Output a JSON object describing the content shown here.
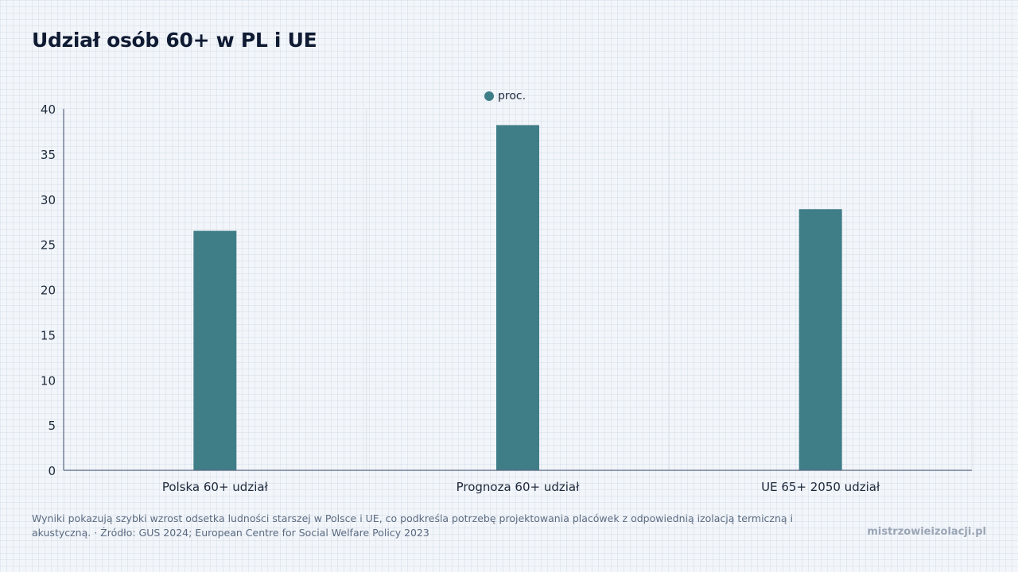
{
  "chart_data": {
    "type": "bar",
    "title": "Udział osób 60+ w PL i UE",
    "categories": [
      "Polska 60+ udział",
      "Prognoza 60+ udział",
      "UE 65+ 2050 udział"
    ],
    "series": [
      {
        "name": "proc.",
        "values": [
          26.5,
          38.2,
          28.9
        ]
      }
    ],
    "xlabel": "",
    "ylabel": "",
    "ylim": [
      0,
      40
    ],
    "yticks": [
      0,
      5,
      10,
      15,
      20,
      25,
      30,
      35,
      40
    ],
    "grid": true,
    "legend_position": "top-center",
    "colors": {
      "bar": "#3f7d87",
      "axis": "#5b6b82",
      "grid": "#dde3ea"
    }
  },
  "footer": {
    "note": "Wyniki pokazują szybki wzrost odsetka ludności starszej w Polsce i UE, co podkreśla potrzebę projektowania placówek z odpowiednią izolacją termiczną i akustyczną. · Źródło: GUS 2024; European Centre for Social Welfare Policy 2023",
    "brand": "mistrzowieizolacji.pl"
  }
}
